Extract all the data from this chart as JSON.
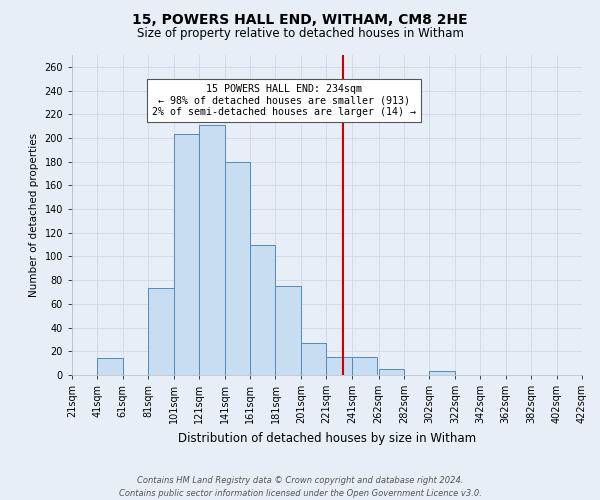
{
  "title": "15, POWERS HALL END, WITHAM, CM8 2HE",
  "subtitle": "Size of property relative to detached houses in Witham",
  "xlabel": "Distribution of detached houses by size in Witham",
  "ylabel": "Number of detached properties",
  "footer_line1": "Contains HM Land Registry data © Crown copyright and database right 2024.",
  "footer_line2": "Contains public sector information licensed under the Open Government Licence v3.0.",
  "bin_left_edges": [
    21,
    41,
    61,
    81,
    101,
    121,
    141,
    161,
    181,
    201,
    221,
    241,
    262,
    282,
    302,
    322,
    342,
    362,
    382,
    402
  ],
  "bin_labels": [
    "21sqm",
    "41sqm",
    "61sqm",
    "81sqm",
    "101sqm",
    "121sqm",
    "141sqm",
    "161sqm",
    "181sqm",
    "201sqm",
    "221sqm",
    "241sqm",
    "262sqm",
    "282sqm",
    "302sqm",
    "322sqm",
    "342sqm",
    "362sqm",
    "382sqm",
    "402sqm",
    "422sqm"
  ],
  "bar_heights": [
    0,
    14,
    0,
    73,
    203,
    211,
    180,
    110,
    75,
    27,
    15,
    15,
    5,
    0,
    3,
    0,
    0,
    0,
    0,
    0
  ],
  "bar_color": "#c9ddf2",
  "bar_edge_color": "#4d8cbf",
  "vline_x": 234,
  "vline_color": "#cc0000",
  "annotation_title": "15 POWERS HALL END: 234sqm",
  "annotation_line1": "← 98% of detached houses are smaller (913)",
  "annotation_line2": "2% of semi-detached houses are larger (14) →",
  "annotation_box_facecolor": "#ffffff",
  "annotation_box_edgecolor": "#555555",
  "ylim": [
    0,
    270
  ],
  "yticks": [
    0,
    20,
    40,
    60,
    80,
    100,
    120,
    140,
    160,
    180,
    200,
    220,
    240,
    260
  ],
  "grid_color": "#d0d8e8",
  "background_color": "#e8eef8",
  "title_fontsize": 10,
  "subtitle_fontsize": 8.5,
  "xlabel_fontsize": 8.5,
  "ylabel_fontsize": 7.5,
  "tick_fontsize": 7,
  "footer_fontsize": 6.0
}
